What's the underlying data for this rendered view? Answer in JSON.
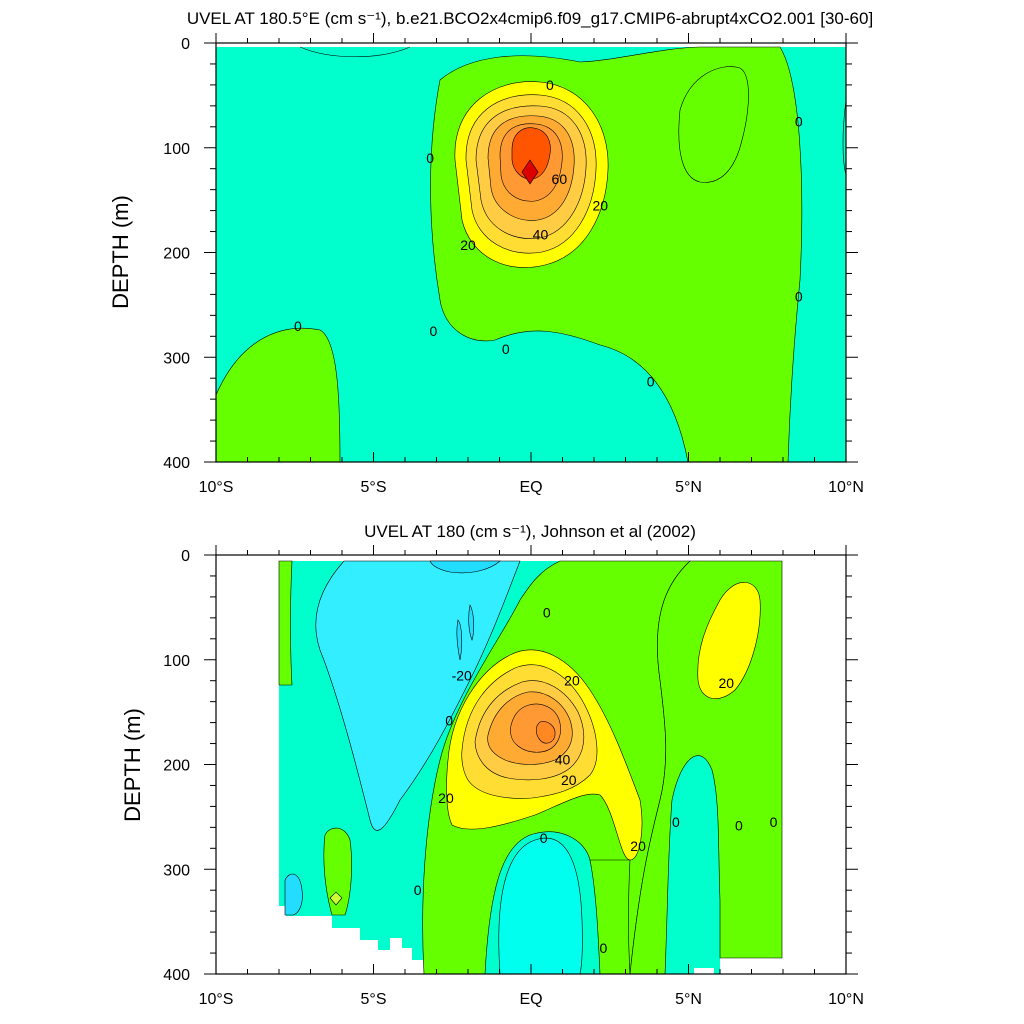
{
  "chart_data": [
    {
      "type": "contour",
      "title": "UVEL AT 180.5°E (cm s⁻¹), b.e21.BCO2x4cmip6.f09_g17.CMIP6-abrupt4xCO2.001 [30-60]",
      "ylabel": "DEPTH (m)",
      "x_ticks": [
        "10°S",
        "5°S",
        "EQ",
        "5°N",
        "10°N"
      ],
      "y_ticks": [
        "0",
        "100",
        "200",
        "300",
        "400"
      ],
      "xlim": [
        -10,
        10
      ],
      "ylim": [
        400,
        0
      ],
      "contour_interval": 10,
      "core": {
        "lat": 0,
        "depth": 125,
        "max_value": 75
      },
      "contour_labels": [
        {
          "text": "0",
          "lat": 0.6,
          "depth": 40
        },
        {
          "text": "0",
          "lat": -3.2,
          "depth": 110
        },
        {
          "text": "60",
          "lat": 0.9,
          "depth": 130
        },
        {
          "text": "20",
          "lat": 2.2,
          "depth": 155
        },
        {
          "text": "40",
          "lat": 0.3,
          "depth": 183
        },
        {
          "text": "20",
          "lat": -2.0,
          "depth": 193
        },
        {
          "text": "0",
          "lat": 8.5,
          "depth": 75
        },
        {
          "text": "0",
          "lat": 8.5,
          "depth": 242
        },
        {
          "text": "0",
          "lat": -7.4,
          "depth": 270
        },
        {
          "text": "0",
          "lat": -3.1,
          "depth": 275
        },
        {
          "text": "0",
          "lat": -0.8,
          "depth": 292
        },
        {
          "text": "0",
          "lat": 3.8,
          "depth": 323
        }
      ]
    },
    {
      "type": "contour",
      "title": "UVEL AT 180 (cm s⁻¹), Johnson et al (2002)",
      "ylabel": "DEPTH (m)",
      "x_ticks": [
        "10°S",
        "5°S",
        "EQ",
        "5°N",
        "10°N"
      ],
      "y_ticks": [
        "0",
        "100",
        "200",
        "300",
        "400"
      ],
      "xlim": [
        -10,
        10
      ],
      "ylim": [
        400,
        0
      ],
      "contour_interval": 10,
      "core": {
        "lat": 0.5,
        "depth": 170,
        "max_value": 65
      },
      "contour_labels": [
        {
          "text": "0",
          "lat": 0.5,
          "depth": 55
        },
        {
          "text": "-20",
          "lat": -2.2,
          "depth": 115
        },
        {
          "text": "20",
          "lat": 1.3,
          "depth": 120
        },
        {
          "text": "20",
          "lat": 6.2,
          "depth": 122
        },
        {
          "text": "0",
          "lat": -2.6,
          "depth": 158
        },
        {
          "text": "40",
          "lat": 1.0,
          "depth": 195
        },
        {
          "text": "20",
          "lat": 1.2,
          "depth": 215
        },
        {
          "text": "20",
          "lat": -2.7,
          "depth": 232
        },
        {
          "text": "0",
          "lat": 4.6,
          "depth": 255
        },
        {
          "text": "0",
          "lat": 6.6,
          "depth": 258
        },
        {
          "text": "0",
          "lat": 7.7,
          "depth": 255
        },
        {
          "text": "0",
          "lat": 0.4,
          "depth": 270
        },
        {
          "text": "20",
          "lat": 3.4,
          "depth": 278
        },
        {
          "text": "0",
          "lat": -3.6,
          "depth": 320
        },
        {
          "text": "0",
          "lat": 2.3,
          "depth": 375
        }
      ]
    }
  ]
}
